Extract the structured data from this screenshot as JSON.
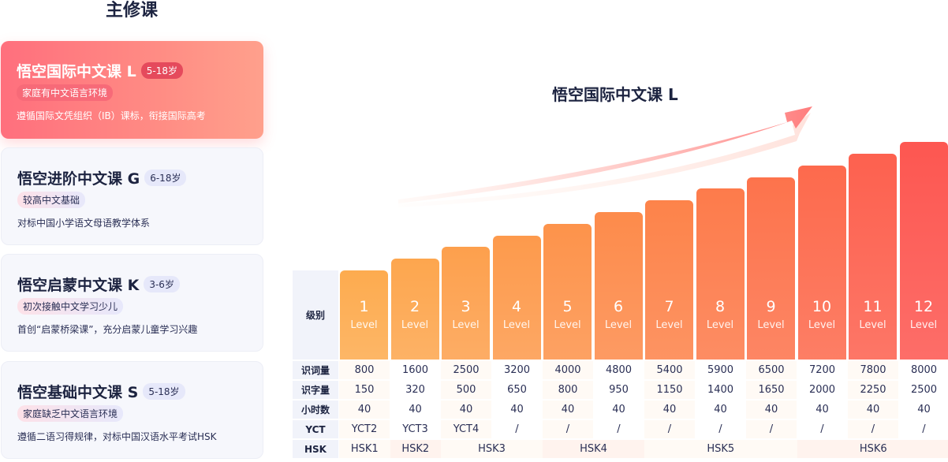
{
  "section_title": "主修课",
  "courses": [
    {
      "name": "悟空国际中文课 L",
      "age": "5-18岁",
      "tag": "家庭有中文语言环境",
      "desc": "遵循国际文凭组织（IB）课标，衔接国际高考"
    },
    {
      "name": "悟空进阶中文课 G",
      "age": "6-18岁",
      "tag": "较高中文基础",
      "desc": "对标中国小学语文母语教学体系"
    },
    {
      "name": "悟空启蒙中文课 K",
      "age": "3-6岁",
      "tag": "初次接触中文学习少儿",
      "desc": "首创“启蒙桥梁课”，充分启蒙儿童学习兴趣"
    },
    {
      "name": "悟空基础中文课 S",
      "age": "5-18岁",
      "tag": "家庭缺乏中文语言环境",
      "desc": "遵循二语习得规律，对标中国汉语水平考试HSK"
    }
  ],
  "chart_title": "悟空国际中文课 L",
  "row_labels": {
    "level": "级别",
    "vocab": "识词量",
    "chars": "识字量",
    "hours": "小时数",
    "yct": "YCT",
    "hsk": "HSK"
  },
  "level_word": "Level",
  "levels": [
    {
      "num": "1",
      "vocab": "800",
      "chars": "150",
      "hours": "40",
      "yct": "YCT2",
      "color": "#fdab4f"
    },
    {
      "num": "2",
      "vocab": "1600",
      "chars": "320",
      "hours": "40",
      "yct": "YCT3",
      "color": "#fda64e"
    },
    {
      "num": "3",
      "vocab": "2500",
      "chars": "500",
      "hours": "40",
      "yct": "YCT4",
      "color": "#fda04d"
    },
    {
      "num": "4",
      "vocab": "3200",
      "chars": "650",
      "hours": "40",
      "yct": "/",
      "color": "#fd9a4c"
    },
    {
      "num": "5",
      "vocab": "4000",
      "chars": "800",
      "hours": "40",
      "yct": "/",
      "color": "#fd934b"
    },
    {
      "num": "6",
      "vocab": "4800",
      "chars": "950",
      "hours": "40",
      "yct": "/",
      "color": "#fd8b4b"
    },
    {
      "num": "7",
      "vocab": "5400",
      "chars": "1150",
      "hours": "40",
      "yct": "/",
      "color": "#fd834a"
    },
    {
      "num": "8",
      "vocab": "5900",
      "chars": "1400",
      "hours": "40",
      "yct": "/",
      "color": "#fd7b4b"
    },
    {
      "num": "9",
      "vocab": "6500",
      "chars": "1650",
      "hours": "40",
      "yct": "/",
      "color": "#fd734c"
    },
    {
      "num": "10",
      "vocab": "7200",
      "chars": "2000",
      "hours": "40",
      "yct": "/",
      "color": "#fd6a4d"
    },
    {
      "num": "11",
      "vocab": "7800",
      "chars": "2250",
      "hours": "40",
      "yct": "/",
      "color": "#fd614f"
    },
    {
      "num": "12",
      "vocab": "8000",
      "chars": "2500",
      "hours": "40",
      "yct": "/",
      "color": "#fd5751"
    }
  ],
  "hsk": [
    {
      "label": "HSK1",
      "span": 1
    },
    {
      "label": "HSK2",
      "span": 1
    },
    {
      "label": "HSK3",
      "span": 2
    },
    {
      "label": "HSK4",
      "span": 2
    },
    {
      "label": "HSK5",
      "span": 3
    },
    {
      "label": "HSK6",
      "span": 3
    }
  ]
}
